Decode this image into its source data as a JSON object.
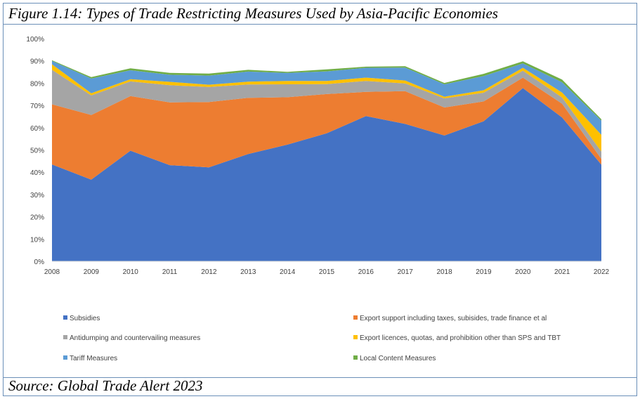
{
  "figure_title": "Figure 1.14: Types of Trade Restricting Measures Used by Asia-Pacific Economies",
  "source_note": "Source: Global Trade Alert 2023",
  "chart_data": {
    "type": "area",
    "stacked": true,
    "title": "",
    "xlabel": "",
    "ylabel": "",
    "x": [
      "2008",
      "2009",
      "2010",
      "2011",
      "2012",
      "2013",
      "2014",
      "2015",
      "2016",
      "2017",
      "2018",
      "2019",
      "2020",
      "2021",
      "2022"
    ],
    "ylim": [
      0,
      100
    ],
    "yticks": [
      0,
      10,
      20,
      30,
      40,
      50,
      60,
      70,
      80,
      90,
      100
    ],
    "ytick_labels": [
      "0%",
      "10%",
      "20%",
      "30%",
      "40%",
      "50%",
      "60%",
      "70%",
      "80%",
      "90%",
      "100%"
    ],
    "grid": false,
    "legend_position": "bottom",
    "series": [
      {
        "name": "Subsidies",
        "color": "#4472c4",
        "values": [
          43.5,
          36.7,
          49.7,
          43.2,
          42.2,
          48.2,
          52.4,
          57.5,
          65.2,
          61.7,
          56.5,
          62.9,
          77.8,
          64.6,
          43.4
        ]
      },
      {
        "name": "Export support  including taxes, subisides, trade finance  et al",
        "color": "#ed7d31",
        "values": [
          27.0,
          29.0,
          24.5,
          28.2,
          29.3,
          25.2,
          21.3,
          17.6,
          10.9,
          14.7,
          12.6,
          8.9,
          4.7,
          6.2,
          2.6
        ]
      },
      {
        "name": "Antidumping and countervailing measures",
        "color": "#a5a5a5",
        "values": [
          15.5,
          8.8,
          6.6,
          7.7,
          6.8,
          6.0,
          5.8,
          4.5,
          4.9,
          3.5,
          4.1,
          3.9,
          3.1,
          2.8,
          3.3
        ]
      },
      {
        "name": "Export licences, quotas, and prohibition other than SPS and TBT",
        "color": "#ffc000",
        "values": [
          2.5,
          1.0,
          1.0,
          1.5,
          1.0,
          1.3,
          1.5,
          1.4,
          1.5,
          1.3,
          0.7,
          1.1,
          1.3,
          2.2,
          7.5
        ]
      },
      {
        "name": "Tariff Measures",
        "color": "#5b9bd5",
        "values": [
          1.5,
          6.6,
          4.0,
          3.2,
          4.1,
          4.5,
          3.6,
          4.3,
          4.4,
          5.8,
          5.6,
          6.4,
          2.0,
          4.6,
          6.4
        ]
      },
      {
        "name": "Local Content Measures",
        "color": "#70ad47",
        "values": [
          0.3,
          0.6,
          0.9,
          0.8,
          0.9,
          0.8,
          0.5,
          0.9,
          0.5,
          0.6,
          0.6,
          1.0,
          0.9,
          1.2,
          0.6
        ]
      }
    ]
  }
}
